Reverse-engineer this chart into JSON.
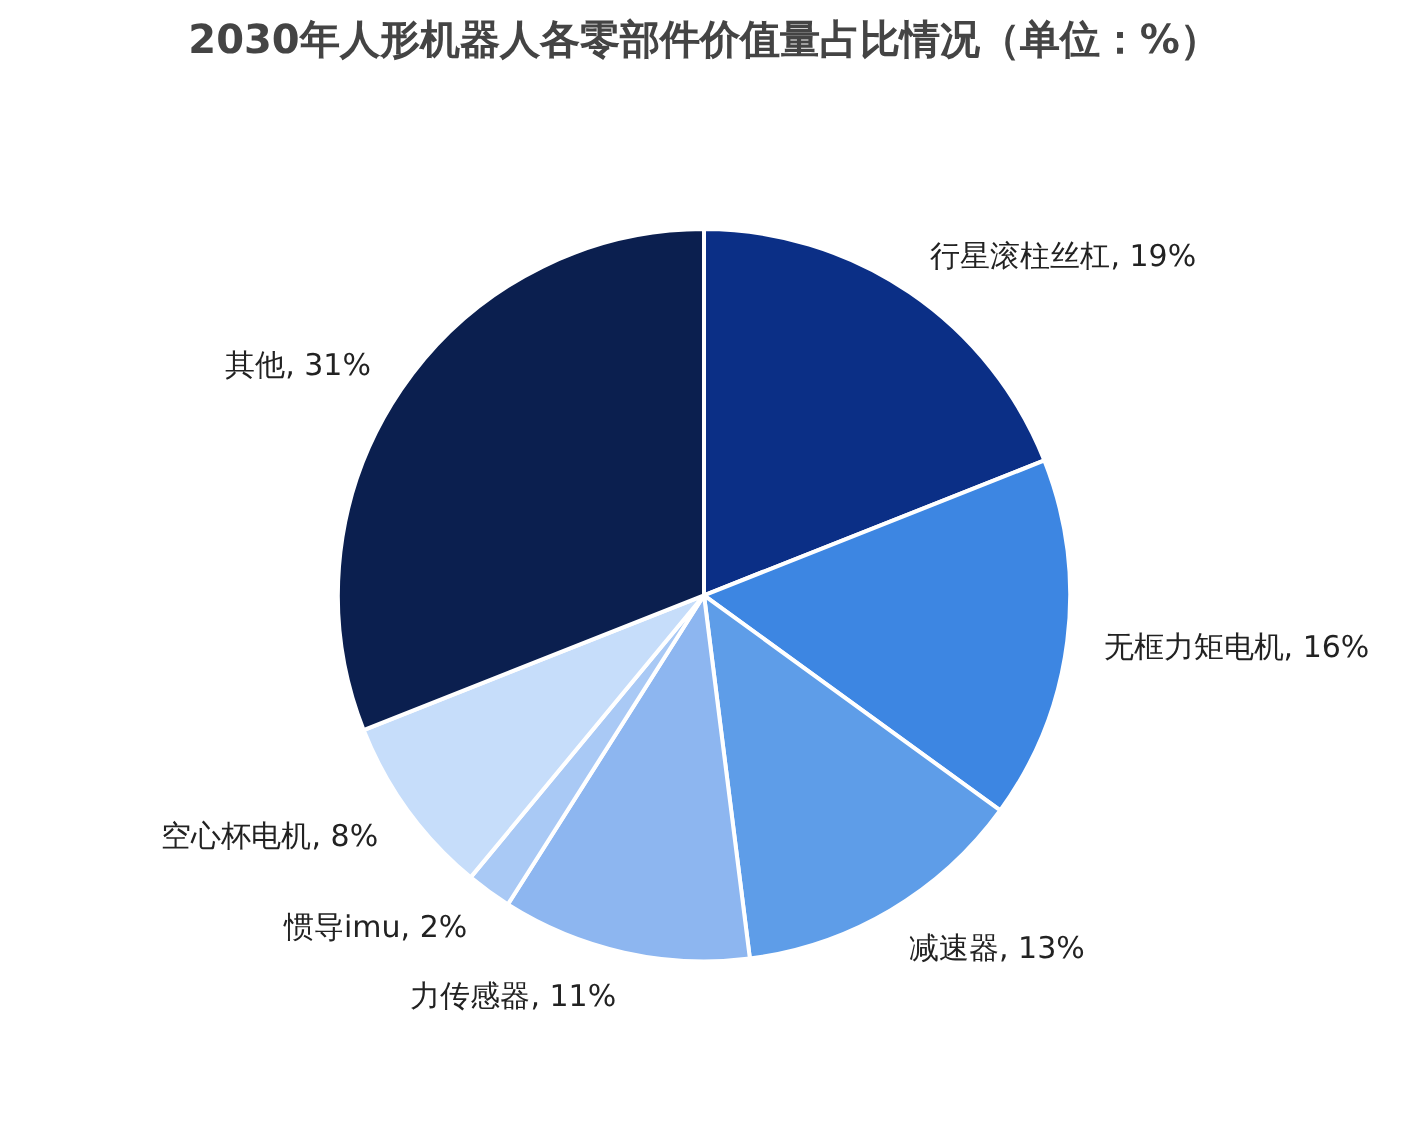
{
  "chart_data": {
    "type": "pie",
    "title": "2030年人形机器人各零部件价值量占比情况（单位：%）",
    "categories": [
      "行星滚柱丝杠",
      "无框力矩电机",
      "减速器",
      "力传感器",
      "惯导imu",
      "空心杯电机",
      "其他"
    ],
    "values": [
      19,
      16,
      13,
      11,
      2,
      8,
      31
    ],
    "colors": [
      "#0b2f86",
      "#3d86e2",
      "#5e9de8",
      "#8db6f0",
      "#a9c9f5",
      "#c6ddfa",
      "#0b1f4f"
    ],
    "value_labels": [
      "19%",
      "16%",
      "13%",
      "11%",
      "2%",
      "8%",
      "31%"
    ]
  }
}
